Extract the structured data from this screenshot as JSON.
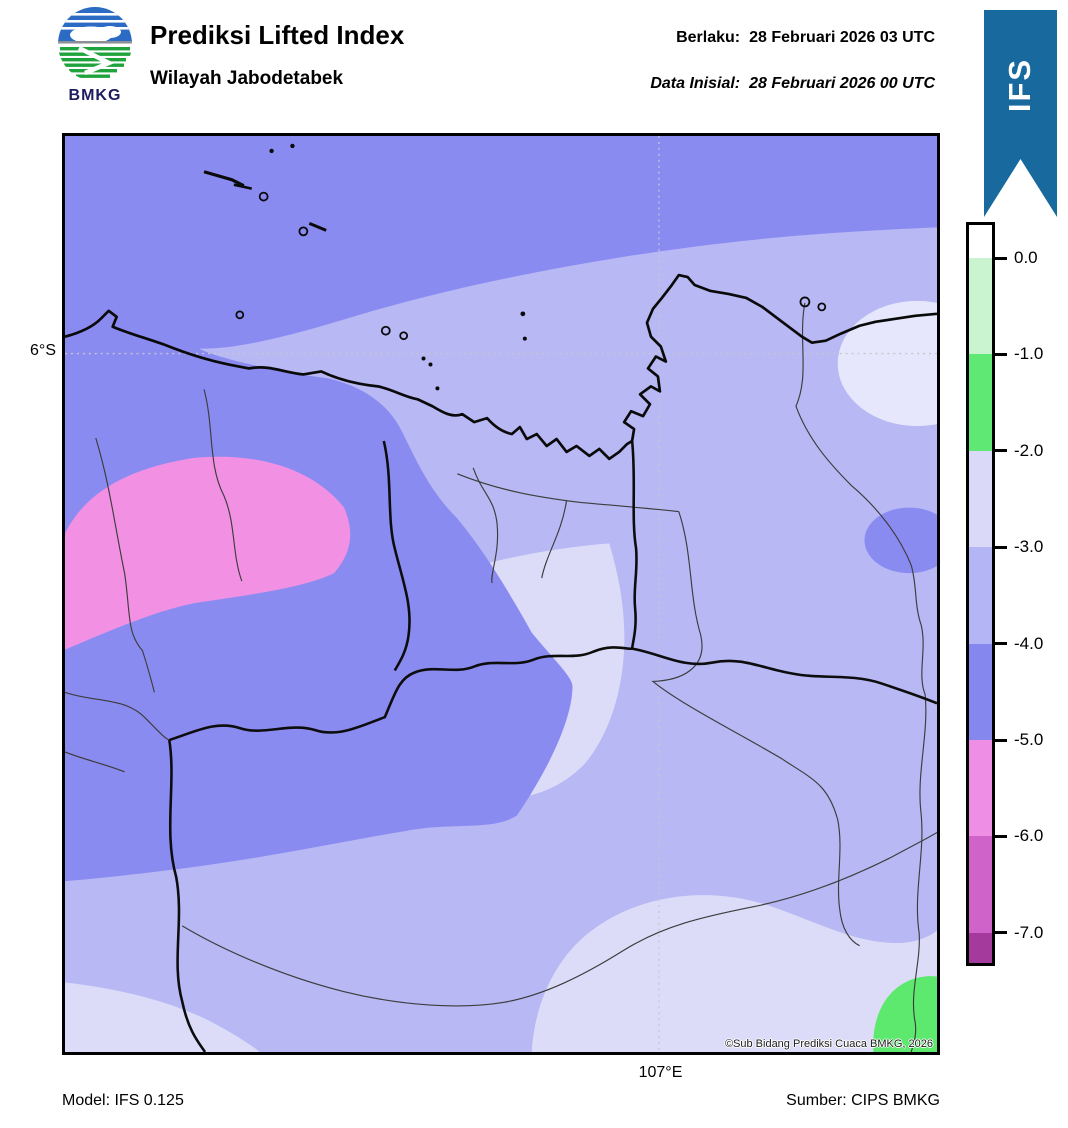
{
  "header": {
    "logo_text": "BMKG",
    "title": "Prediksi Lifted Index",
    "subtitle": "Wilayah Jabodetabek",
    "valid_label": "Berlaku:",
    "valid_value": "28 Februari 2026 03 UTC",
    "init_label": "Data Inisial:",
    "init_value": "28 Februari 2026 00 UTC",
    "ribbon_model": "IFS",
    "ribbon_color": "#17699e"
  },
  "map": {
    "lat_tick_label": "6°S",
    "lon_tick_label": "107°E",
    "copyright": "©Sub Bidang Prediksi Cuaca BMKG, 2026",
    "fill_levels": {
      "lvl_1_2": "#5ce96e",
      "lvl_2_3": "#dcdcf9",
      "lvl_2_3_light": "#e6e6fc",
      "lvl_3_4": "#b7b8f4",
      "lvl_4_5": "#8a8bf1",
      "lvl_5_6": "#f291e3"
    }
  },
  "colorbar": {
    "tick_labels": [
      "0.0",
      "-1.0",
      "-2.0",
      "-3.0",
      "-4.0",
      "-5.0",
      "-6.0",
      "-7.0"
    ],
    "segment_colors": [
      "#ffffff",
      "#c9f4cf",
      "#5fe873",
      "#dadaf8",
      "#b4b5f4",
      "#8587ef",
      "#ee8ee5",
      "#d063c9",
      "#a33a9c"
    ]
  },
  "footer": {
    "model": "Model: IFS 0.125",
    "source": "Sumber: CIPS BMKG"
  }
}
